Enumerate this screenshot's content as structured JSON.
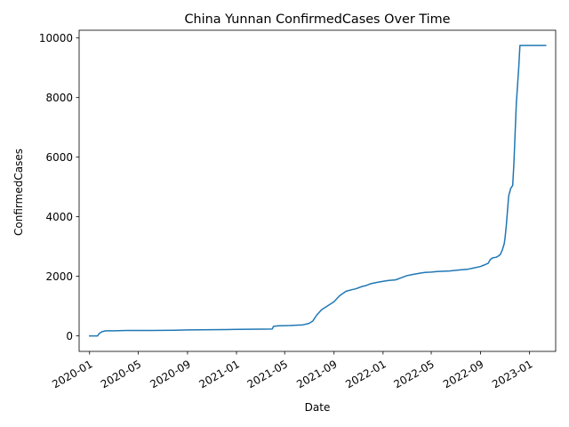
{
  "chart_data": {
    "type": "line",
    "title": "China Yunnan ConfirmedCases Over Time",
    "xlabel": "Date",
    "ylabel": "ConfirmedCases",
    "xlim": [
      "2019-12-06",
      "2023-03-07"
    ],
    "ylim": [
      -520,
      10260
    ],
    "grid": false,
    "line_color": "#1f77b4",
    "x_ticks": [
      "2020-01",
      "2020-05",
      "2020-09",
      "2021-01",
      "2021-05",
      "2021-09",
      "2022-01",
      "2022-05",
      "2022-09",
      "2023-01"
    ],
    "y_ticks": [
      0,
      2000,
      4000,
      6000,
      8000,
      10000
    ],
    "series": [
      {
        "x": [
          "2020-01-01",
          "2020-01-21",
          "2020-01-25",
          "2020-02-01",
          "2020-02-10",
          "2020-03-01",
          "2020-04-01",
          "2020-06-01",
          "2020-08-01",
          "2020-09-01",
          "2020-12-01",
          "2021-01-01",
          "2021-03-01",
          "2021-03-31",
          "2021-04-03",
          "2021-04-15",
          "2021-05-15",
          "2021-06-15",
          "2021-07-01",
          "2021-07-10",
          "2021-07-20",
          "2021-08-01",
          "2021-08-15",
          "2021-09-01",
          "2021-09-15",
          "2021-10-01",
          "2021-10-15",
          "2021-10-25",
          "2021-11-10",
          "2021-11-20",
          "2021-12-01",
          "2021-12-15",
          "2022-01-01",
          "2022-01-15",
          "2022-02-01",
          "2022-02-15",
          "2022-03-01",
          "2022-03-15",
          "2022-04-01",
          "2022-04-15",
          "2022-05-01",
          "2022-05-15",
          "2022-06-01",
          "2022-06-15",
          "2022-07-01",
          "2022-07-15",
          "2022-08-01",
          "2022-08-15",
          "2022-09-01",
          "2022-09-10",
          "2022-09-20",
          "2022-09-25",
          "2022-10-01",
          "2022-10-10",
          "2022-10-15",
          "2022-10-20",
          "2022-10-25",
          "2022-10-30",
          "2022-11-01",
          "2022-11-04",
          "2022-11-07",
          "2022-11-10",
          "2022-11-15",
          "2022-11-20",
          "2022-11-23",
          "2022-11-26",
          "2022-11-29",
          "2022-12-02",
          "2022-12-05",
          "2022-12-08",
          "2022-12-10",
          "2022-12-12",
          "2022-12-15",
          "2023-01-01",
          "2023-01-15",
          "2023-02-10"
        ],
        "y": [
          0,
          0,
          80,
          140,
          170,
          170,
          180,
          180,
          190,
          200,
          210,
          220,
          225,
          230,
          320,
          340,
          350,
          370,
          420,
          500,
          700,
          880,
          1000,
          1150,
          1350,
          1500,
          1550,
          1580,
          1660,
          1690,
          1750,
          1790,
          1830,
          1860,
          1880,
          1950,
          2020,
          2060,
          2100,
          2130,
          2140,
          2160,
          2170,
          2180,
          2200,
          2220,
          2240,
          2280,
          2330,
          2380,
          2440,
          2560,
          2620,
          2640,
          2680,
          2730,
          2880,
          3100,
          3300,
          3700,
          4200,
          4700,
          4950,
          5050,
          5800,
          6800,
          7800,
          8400,
          9000,
          9750,
          9750,
          9750,
          9750,
          9750,
          9750,
          9750
        ]
      }
    ]
  }
}
